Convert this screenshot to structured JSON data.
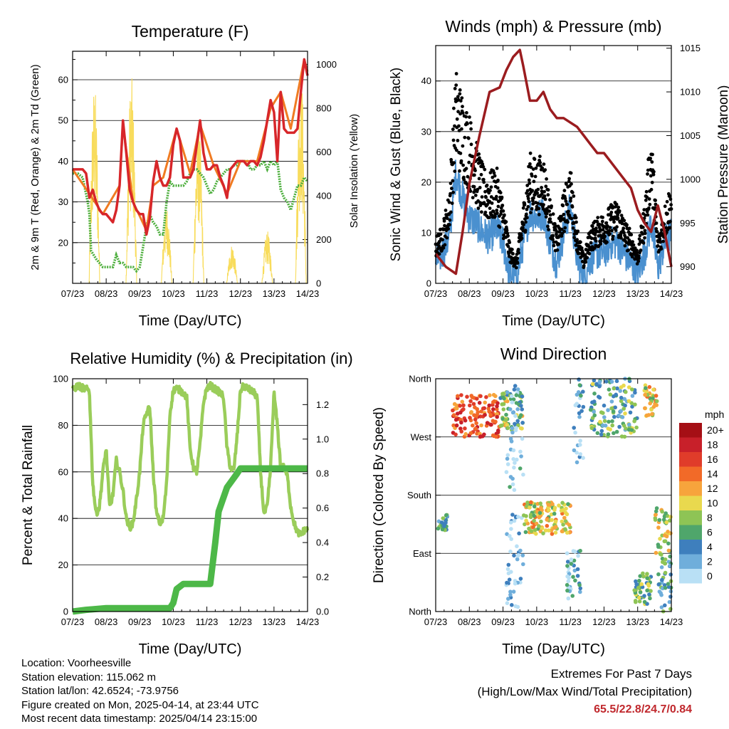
{
  "colors": {
    "temp2m": "#d7262a",
    "temp9m": "#f07b22",
    "dewpoint": "#4cae3c",
    "solar": "#f8dc5c",
    "wind": "#4a90cf",
    "gust": "#000000",
    "pressure": "#9b1c1f",
    "rh": "#9acd5a",
    "precip": "#4db848",
    "extreme_text": "#c0282d"
  },
  "shared_x_ticks": [
    "07/23",
    "08/23",
    "09/23",
    "10/23",
    "11/23",
    "12/23",
    "13/23",
    "14/23"
  ],
  "chart_data": [
    {
      "id": "temperature",
      "type": "line",
      "title": "Temperature (F)",
      "xlabel": "Time (Day/UTC)",
      "ylabel": "2m & 9m T (Red, Orange) & 2m Td (Green)",
      "ylabel_right": "Solar Insolation (Yellow)",
      "xlim": [
        0,
        7
      ],
      "ylim": [
        10,
        67
      ],
      "ylim_right": [
        0,
        1060
      ],
      "yticks": [
        20,
        30,
        40,
        50,
        60
      ],
      "yticks_right": [
        0,
        200,
        400,
        600,
        800,
        1000
      ],
      "series": [
        {
          "key": "temp2m",
          "x": [
            0,
            0.15,
            0.3,
            0.4,
            0.5,
            0.6,
            0.7,
            0.8,
            0.9,
            1.0,
            1.1,
            1.2,
            1.3,
            1.4,
            1.5,
            1.6,
            1.7,
            1.8,
            1.9,
            2.0,
            2.1,
            2.2,
            2.3,
            2.4,
            2.5,
            2.6,
            2.7,
            2.8,
            2.9,
            3.0,
            3.1,
            3.2,
            3.3,
            3.4,
            3.5,
            3.6,
            3.7,
            3.8,
            3.9,
            4.0,
            4.1,
            4.2,
            4.3,
            4.4,
            4.5,
            4.6,
            4.7,
            4.8,
            4.9,
            5.0,
            5.1,
            5.2,
            5.3,
            5.4,
            5.5,
            5.6,
            5.7,
            5.8,
            5.9,
            6.0,
            6.1,
            6.2,
            6.3,
            6.4,
            6.5,
            6.6,
            6.7,
            6.8,
            6.9,
            7.0
          ],
          "y": [
            38,
            38,
            38,
            37,
            31,
            33,
            30,
            28,
            27,
            27,
            26,
            25,
            28,
            34,
            50,
            42,
            33,
            30,
            28,
            27,
            27,
            22,
            26,
            35,
            40,
            36,
            34,
            34,
            36,
            44,
            48,
            45,
            36,
            36,
            36,
            38,
            44,
            50,
            42,
            38,
            38,
            39,
            39,
            36,
            34,
            31,
            38,
            39,
            40,
            40,
            40,
            39,
            40,
            40,
            39,
            41,
            45,
            50,
            55,
            52,
            40,
            57,
            48,
            47,
            47,
            47,
            48,
            57,
            65,
            61
          ]
        },
        {
          "key": "temp9m",
          "x": [
            0,
            0.5,
            0.9,
            1.4,
            1.5,
            1.8,
            2.2,
            2.4,
            2.7,
            3.0,
            3.1,
            3.5,
            3.8,
            4.2,
            4.6,
            5.0,
            5.5,
            5.9,
            6.2,
            6.5,
            6.9,
            7.0
          ],
          "y": [
            38,
            32,
            27,
            34,
            49,
            30,
            23,
            34,
            36,
            45,
            48,
            37,
            49,
            39,
            32,
            40,
            40,
            53,
            57,
            48,
            65,
            62
          ]
        },
        {
          "key": "dewpoint",
          "x": [
            0,
            0.15,
            0.3,
            0.45,
            0.5,
            0.55,
            0.7,
            0.8,
            0.9,
            1.0,
            1.1,
            1.2,
            1.3,
            1.4,
            1.5,
            1.6,
            1.7,
            1.8,
            1.9,
            2.0,
            2.1,
            2.2,
            2.3,
            2.4,
            2.5,
            2.6,
            2.7,
            2.8,
            2.9,
            3.0,
            3.1,
            3.2,
            3.3,
            3.4,
            3.5,
            3.6,
            3.7,
            3.8,
            3.9,
            4.0,
            4.1,
            4.2,
            4.3,
            4.4,
            4.5,
            4.6,
            4.7,
            4.8,
            4.9,
            5.0,
            5.1,
            5.2,
            5.3,
            5.4,
            5.5,
            5.6,
            5.7,
            5.8,
            5.9,
            6.0,
            6.1,
            6.2,
            6.3,
            6.4,
            6.5,
            6.6,
            6.7,
            6.8,
            6.9,
            7.0
          ],
          "y": [
            37,
            37,
            36,
            30,
            27,
            18,
            16,
            15,
            14,
            14,
            14,
            14,
            17,
            15,
            15,
            14,
            14,
            14,
            13,
            14,
            19,
            24,
            27,
            25,
            24,
            22,
            22,
            30,
            35,
            34,
            34,
            34,
            34,
            35,
            37,
            38,
            38,
            37,
            36,
            34,
            32,
            33,
            35,
            36,
            37,
            38,
            38,
            39,
            39,
            40,
            40,
            40,
            38,
            38,
            39,
            39,
            40,
            38,
            40,
            39,
            40,
            33,
            31,
            30,
            28,
            31,
            34,
            34,
            36,
            35
          ]
        },
        {
          "key": "solar",
          "peaks": [
            {
              "center": 0.65,
              "max": 920
            },
            {
              "center": 1.75,
              "max": 950
            },
            {
              "center": 2.8,
              "max": 360
            },
            {
              "center": 3.75,
              "max": 760
            },
            {
              "center": 4.75,
              "max": 180
            },
            {
              "center": 5.8,
              "max": 240
            },
            {
              "center": 6.8,
              "max": 1000
            }
          ]
        }
      ]
    },
    {
      "id": "winds",
      "type": "scatter",
      "title": "Winds (mph) & Pressure (mb)",
      "xlabel": "Time (Day/UTC)",
      "ylabel": "Sonic Wind & Gust (Blue, Black)",
      "ylabel_right": "Station Pressure (Maroon)",
      "xlim": [
        0,
        7
      ],
      "ylim": [
        0,
        47
      ],
      "ylim_right": [
        988.1,
        1015.3
      ],
      "yticks": [
        0,
        10,
        20,
        30,
        40
      ],
      "yticks_right": [
        990,
        995,
        1000,
        1005,
        1010,
        1015
      ],
      "series": [
        {
          "key": "wind",
          "x": [
            0,
            0.2,
            0.4,
            0.6,
            0.8,
            1.0,
            1.2,
            1.4,
            1.6,
            1.8,
            2.0,
            2.2,
            2.4,
            2.6,
            2.8,
            3.0,
            3.2,
            3.4,
            3.6,
            3.8,
            4.0,
            4.2,
            4.4,
            4.6,
            4.8,
            5.0,
            5.2,
            5.4,
            5.6,
            5.8,
            6.0,
            6.2,
            6.4,
            6.6,
            6.8,
            7.0
          ],
          "y": [
            4,
            6,
            9,
            22,
            17,
            13,
            12,
            10,
            9,
            11,
            8,
            2,
            1,
            8,
            14,
            13,
            14,
            8,
            4,
            10,
            15,
            5,
            1,
            5,
            6,
            6,
            8,
            8,
            6,
            4,
            2,
            6,
            12,
            3,
            8,
            10
          ]
        },
        {
          "key": "gust",
          "x": [
            0,
            0.2,
            0.4,
            0.6,
            0.8,
            1.0,
            1.2,
            1.4,
            1.6,
            1.8,
            2.0,
            2.2,
            2.4,
            2.6,
            2.8,
            3.0,
            3.2,
            3.4,
            3.6,
            3.8,
            4.0,
            4.2,
            4.4,
            4.6,
            4.8,
            5.0,
            5.2,
            5.4,
            5.6,
            5.8,
            6.0,
            6.2,
            6.4,
            6.6,
            6.8,
            7.0
          ],
          "y": [
            7,
            9,
            14,
            33,
            29,
            26,
            22,
            18,
            17,
            18,
            13,
            6,
            4,
            12,
            20,
            19,
            20,
            13,
            8,
            14,
            18,
            9,
            4,
            9,
            10,
            11,
            12,
            13,
            10,
            8,
            5,
            12,
            24,
            7,
            12,
            16
          ]
        },
        {
          "key": "pressure",
          "x": [
            0,
            0.3,
            0.6,
            0.8,
            1.0,
            1.3,
            1.6,
            1.9,
            2.1,
            2.3,
            2.5,
            2.6,
            2.8,
            3.0,
            3.2,
            3.4,
            3.6,
            3.8,
            4.0,
            4.2,
            4.4,
            4.6,
            4.8,
            5.0,
            5.2,
            5.4,
            5.6,
            5.8,
            6.0,
            6.2,
            6.4,
            6.6,
            6.8,
            7.0
          ],
          "y": [
            991.5,
            990,
            989.2,
            994,
            999.5,
            1005,
            1010,
            1010.5,
            1012.5,
            1014,
            1014.8,
            1013,
            1009,
            1009,
            1010,
            1008,
            1007,
            1007,
            1006.5,
            1006,
            1005,
            1004,
            1003,
            1003,
            1002,
            1001,
            1000,
            999,
            996.5,
            995,
            994,
            997,
            994,
            990
          ]
        }
      ]
    },
    {
      "id": "humidity",
      "type": "line",
      "title": "Relative Humidity (%) & Precipitation (in)",
      "xlabel": "Time (Day/UTC)",
      "ylabel": "Percent & Total Rainfall",
      "xlim": [
        0,
        7
      ],
      "ylim": [
        0,
        100
      ],
      "ylim_right": [
        0,
        1.35
      ],
      "yticks": [
        0,
        20,
        40,
        60,
        80,
        100
      ],
      "yticks_right": [
        0.0,
        0.2,
        0.4,
        0.6,
        0.8,
        1.0,
        1.2
      ],
      "series": [
        {
          "key": "rh",
          "x": [
            0,
            0.15,
            0.3,
            0.5,
            0.6,
            0.7,
            0.8,
            0.9,
            1.0,
            1.1,
            1.2,
            1.3,
            1.4,
            1.5,
            1.6,
            1.7,
            1.8,
            1.9,
            2.0,
            2.1,
            2.2,
            2.3,
            2.4,
            2.5,
            2.6,
            2.7,
            2.8,
            2.9,
            3.0,
            3.1,
            3.2,
            3.3,
            3.4,
            3.5,
            3.6,
            3.7,
            3.8,
            3.9,
            4.0,
            4.1,
            4.2,
            4.3,
            4.4,
            4.5,
            4.6,
            4.7,
            4.8,
            4.9,
            5.0,
            5.1,
            5.2,
            5.3,
            5.4,
            5.5,
            5.6,
            5.7,
            5.8,
            5.9,
            6.0,
            6.1,
            6.2,
            6.3,
            6.4,
            6.5,
            6.6,
            6.7,
            6.8,
            6.9,
            7.0
          ],
          "y": [
            95,
            97,
            96,
            95,
            55,
            42,
            45,
            60,
            70,
            45,
            50,
            65,
            60,
            52,
            40,
            36,
            38,
            48,
            60,
            80,
            85,
            88,
            60,
            42,
            38,
            40,
            55,
            85,
            95,
            96,
            95,
            94,
            92,
            70,
            62,
            60,
            72,
            90,
            96,
            97,
            96,
            95,
            94,
            92,
            70,
            62,
            60,
            75,
            95,
            97,
            96,
            95,
            94,
            92,
            60,
            42,
            45,
            62,
            94,
            80,
            62,
            62,
            58,
            45,
            38,
            34,
            33,
            35,
            35
          ]
        },
        {
          "key": "precip",
          "x": [
            0,
            0.4,
            1.0,
            2.0,
            2.9,
            3.0,
            3.1,
            3.3,
            3.5,
            3.8,
            4.1,
            4.25,
            4.35,
            4.6,
            4.9,
            5.0,
            5.5,
            6.0,
            7.0
          ],
          "y": [
            0,
            0.01,
            0.02,
            0.02,
            0.02,
            0.05,
            0.13,
            0.16,
            0.16,
            0.16,
            0.16,
            0.4,
            0.58,
            0.72,
            0.8,
            0.83,
            0.83,
            0.83,
            0.83
          ]
        }
      ]
    },
    {
      "id": "direction",
      "type": "scatter",
      "title": "Wind Direction",
      "xlabel": "Time (Day/UTC)",
      "ylabel": "Direction (Colored By Speed)",
      "xlim": [
        0,
        7
      ],
      "ylim": [
        0,
        360
      ],
      "yticks": [
        0,
        90,
        180,
        270,
        360
      ],
      "ytick_labels": [
        "North",
        "East",
        "South",
        "West",
        "North"
      ],
      "legend": {
        "title": "mph",
        "position": "right",
        "levels": [
          "20+",
          "18",
          "16",
          "14",
          "12",
          "10",
          "8",
          "6",
          "4",
          "2",
          "0"
        ],
        "colors": [
          "#a50f15",
          "#c8202a",
          "#e03c2a",
          "#f26a28",
          "#f7a43c",
          "#e9d94e",
          "#8ec455",
          "#4fa66b",
          "#3e7fbd",
          "#6faedb",
          "#b9e0f5"
        ]
      },
      "clusters": [
        {
          "x0": 0.05,
          "x1": 0.35,
          "dir0": 125,
          "dir1": 150,
          "speed": 5
        },
        {
          "x0": 0.5,
          "x1": 1.9,
          "dir0": 270,
          "dir1": 335,
          "speed": 15
        },
        {
          "x0": 1.9,
          "x1": 2.6,
          "dir0": 280,
          "dir1": 340,
          "speed": 8
        },
        {
          "x0": 2.1,
          "x1": 2.6,
          "dir0": 180,
          "dir1": 350,
          "speed": 2
        },
        {
          "x0": 2.1,
          "x1": 2.6,
          "dir0": 0,
          "dir1": 150,
          "speed": 1
        },
        {
          "x0": 2.6,
          "x1": 4.0,
          "dir0": 120,
          "dir1": 170,
          "speed": 10
        },
        {
          "x0": 3.9,
          "x1": 4.3,
          "dir0": 20,
          "dir1": 100,
          "speed": 3
        },
        {
          "x0": 4.1,
          "x1": 4.4,
          "dir0": 230,
          "dir1": 360,
          "speed": 2
        },
        {
          "x0": 4.6,
          "x1": 6.0,
          "dir0": 270,
          "dir1": 360,
          "speed": 6
        },
        {
          "x0": 5.9,
          "x1": 6.4,
          "dir0": 10,
          "dir1": 60,
          "speed": 7
        },
        {
          "x0": 6.2,
          "x1": 6.6,
          "dir0": 300,
          "dir1": 350,
          "speed": 10
        },
        {
          "x0": 6.5,
          "x1": 7.0,
          "dir0": 80,
          "dir1": 160,
          "speed": 9
        },
        {
          "x0": 6.6,
          "x1": 7.0,
          "dir0": 0,
          "dir1": 80,
          "speed": 5
        }
      ]
    }
  ],
  "footer": {
    "location": "Location: Voorheesville",
    "elevation": "Station elevation: 115.062 m",
    "latlon": "Station lat/lon: 42.6524; -73.9756",
    "created": "Figure created on Mon, 2025-04-14, at 23:44 UTC",
    "recent": "Most recent data timestamp: 2025/04/14 23:15:00",
    "extremes_title": "Extremes For Past 7 Days",
    "extremes_sub": "(High/Low/Max Wind/Total Precipitation)",
    "extremes_values": "65.5/22.8/24.7/0.84"
  }
}
